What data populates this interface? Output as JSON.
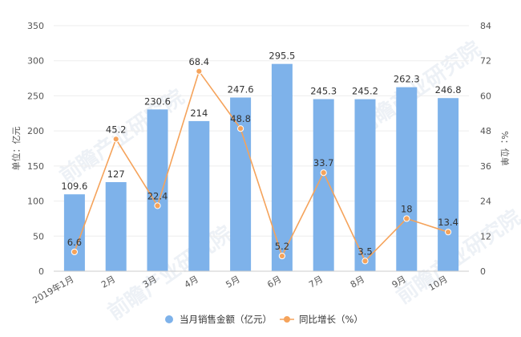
{
  "watermark": "前瞻产业研究院",
  "legend": {
    "bar_label": "当月销售金额（亿元）",
    "line_label": "同比增长（%）"
  },
  "colors": {
    "bar": "#7eb2ea",
    "line": "#f5a35b",
    "axis_text": "#555555",
    "label_text": "#333333",
    "grid": "#eeeeee"
  },
  "chart_data": {
    "type": "bar",
    "categories": [
      "2019年1月",
      "2月",
      "3月",
      "4月",
      "5月",
      "6月",
      "7月",
      "8月",
      "9月",
      "10月"
    ],
    "series": [
      {
        "name": "当月销售金额（亿元）",
        "type": "bar",
        "axis": "left",
        "values": [
          109.6,
          127,
          230.6,
          214,
          247.6,
          295.5,
          245.3,
          245.2,
          262.3,
          246.8
        ],
        "labels": [
          "109.6",
          "127",
          "230.6",
          "214",
          "247.6",
          "295.5",
          "245.3",
          "245.2",
          "262.3",
          "246.8"
        ]
      },
      {
        "name": "同比增长（%）",
        "type": "line",
        "axis": "right",
        "values": [
          6.6,
          45.2,
          22.4,
          68.4,
          48.8,
          5.2,
          33.7,
          3.5,
          18,
          13.4
        ],
        "labels": [
          "6.6",
          "45.2",
          "22.4",
          "68.4",
          "48.8",
          "5.2",
          "33.7",
          "3.5",
          "18",
          "13.4"
        ]
      }
    ],
    "ylabel": "单位：亿元",
    "ylabel_right": "%：位单",
    "ylim": [
      0,
      350
    ],
    "yticks": [
      0,
      50,
      100,
      150,
      200,
      250,
      300,
      350
    ],
    "ylim_right": [
      0,
      84
    ],
    "yticks_right": [
      0,
      12,
      24,
      36,
      48,
      60,
      72,
      84
    ],
    "grid": true,
    "legend_position": "bottom"
  }
}
